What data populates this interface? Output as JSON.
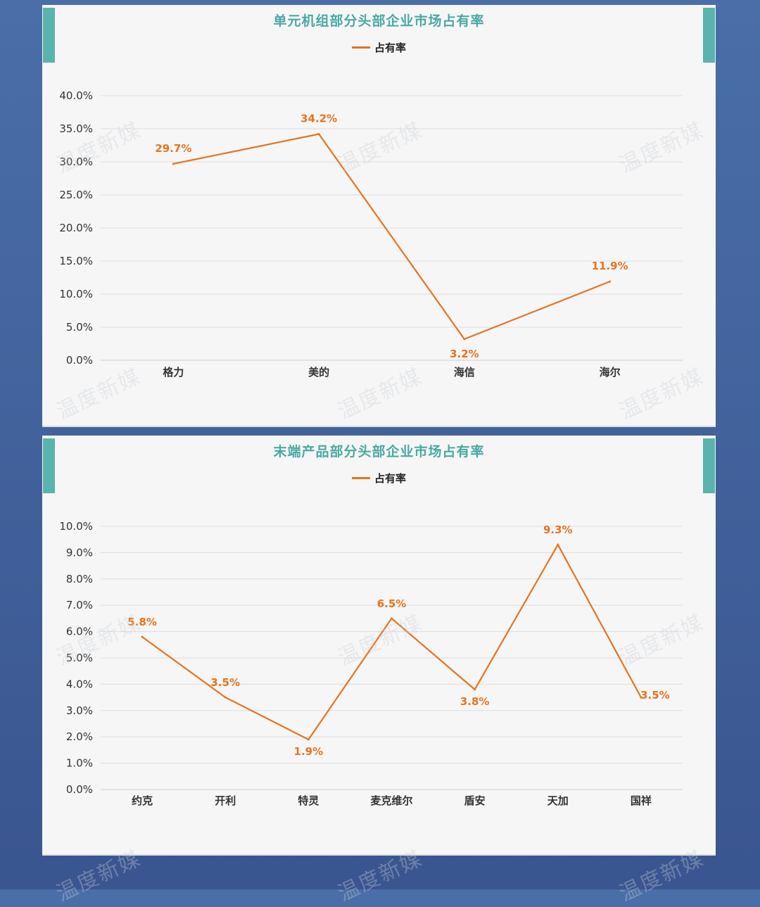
{
  "watermark_text": "温度新媒",
  "colors": {
    "accent": "#5bb3ad",
    "title": "#4aa9a3",
    "line": "#e8731e",
    "grid": "#dddddd"
  },
  "chart_data": [
    {
      "type": "line",
      "title": "单元机组部分头部企业市场占有率",
      "categories": [
        "格力",
        "美的",
        "海信",
        "海尔"
      ],
      "series": [
        {
          "name": "占有率",
          "values": [
            29.7,
            34.2,
            3.2,
            11.9
          ]
        }
      ],
      "value_labels": [
        "29.7%",
        "34.2%",
        "3.2%",
        "11.9%"
      ],
      "ylim": [
        0,
        40
      ],
      "yticks": [
        "0.0%",
        "5.0%",
        "10.0%",
        "15.0%",
        "20.0%",
        "25.0%",
        "30.0%",
        "35.0%",
        "40.0%"
      ],
      "grid": true,
      "legend": "top-center"
    },
    {
      "type": "line",
      "title": "末端产品部分头部企业市场占有率",
      "categories": [
        "约克",
        "开利",
        "特灵",
        "麦克维尔",
        "盾安",
        "天加",
        "国祥"
      ],
      "series": [
        {
          "name": "占有率",
          "values": [
            5.8,
            3.5,
            1.9,
            6.5,
            3.8,
            9.3,
            3.5
          ]
        }
      ],
      "value_labels": [
        "5.8%",
        "3.5%",
        "1.9%",
        "6.5%",
        "3.8%",
        "9.3%",
        "3.5%"
      ],
      "ylim": [
        0,
        10
      ],
      "yticks": [
        "0.0%",
        "1.0%",
        "2.0%",
        "3.0%",
        "4.0%",
        "5.0%",
        "6.0%",
        "7.0%",
        "8.0%",
        "9.0%",
        "10.0%"
      ],
      "grid": true,
      "legend": "top-center"
    }
  ]
}
